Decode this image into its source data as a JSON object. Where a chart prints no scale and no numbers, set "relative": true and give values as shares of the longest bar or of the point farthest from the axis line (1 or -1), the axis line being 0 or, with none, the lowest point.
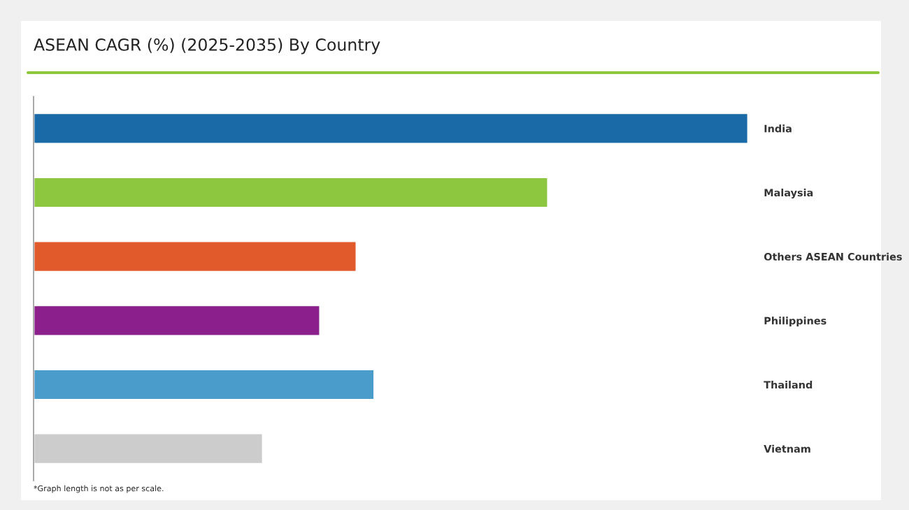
{
  "chart_data": {
    "type": "bar",
    "orientation": "horizontal",
    "relative": true,
    "title": "ASEAN CAGR (%) (2025-2035) By Country",
    "categories": [
      "India",
      "Malaysia",
      "Others ASEAN Countries",
      "Philippines",
      "Thailand",
      "Vietnam"
    ],
    "values": [
      1,
      0.72,
      0.452,
      0.401,
      0.477,
      0.321
    ],
    "colors": [
      "#1a6aa8",
      "#8dc63f",
      "#e05a2b",
      "#8b1f8b",
      "#4a9ccb",
      "#cccccc"
    ],
    "annotations": [
      "*Graph length is not as per scale."
    ],
    "grid": false,
    "legend": false
  }
}
